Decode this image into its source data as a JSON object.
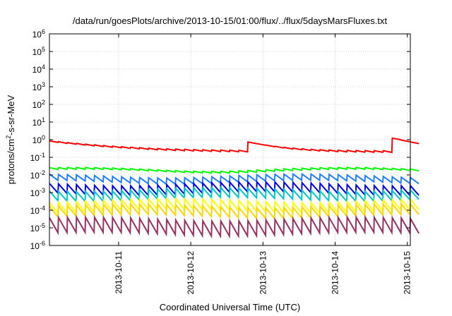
{
  "chart_data": {
    "type": "line",
    "title": "/data/run/goesPlots/archive/2013-10-15/01:00/flux/../flux/5daysMarsFluxes.txt",
    "xlabel": "Coordinated Universal Time (UTC)",
    "ylabel": "protons/cm²-s-sr-MeV",
    "ylabel_parts": {
      "before": "protons/cm",
      "sup": "2",
      "after": "-s-sr-MeV"
    },
    "yscale": "log",
    "ylim_exponents": [
      -6,
      6
    ],
    "y_tick_base": "10",
    "y_tick_exponents": [
      "-6",
      "-5",
      "-4",
      "-3",
      "-2",
      "-1",
      "0",
      "1",
      "2",
      "3",
      "4",
      "5",
      "6"
    ],
    "x_ticks": [
      "2013-10-11",
      "2013-10-12",
      "2013-10-13",
      "2013-10-14",
      "2013-10-15"
    ],
    "x_start": "2013-10-10 01:00",
    "x_end": "2013-10-15 01:00",
    "grid": true,
    "legend": "none",
    "series_style": [
      {
        "color": "#ff0000",
        "base": 0.22,
        "amplitude": 0.15
      },
      {
        "color": "#00ff00",
        "base": 0.019,
        "amplitude": 0.1
      },
      {
        "color": "#1f7fff",
        "base": 0.006,
        "amplitude": 0.35
      },
      {
        "color": "#0000ee",
        "base": 0.0017,
        "amplitude": 0.55
      },
      {
        "color": "#00c8c8",
        "base": 0.0008,
        "amplitude": 0.55
      },
      {
        "color": "#ffff00",
        "base": 0.00018,
        "amplitude": 0.6
      },
      {
        "color": "#ffd700",
        "base": 9e-05,
        "amplitude": 0.6
      },
      {
        "color": "#9a3060",
        "base": 1.2e-05,
        "amplitude": 0.85
      }
    ],
    "peaks_approx": [
      {
        "x": "2013-10-12 17:00",
        "y": 0.8
      },
      {
        "x": "2013-10-14 17:00",
        "y": 1.4
      }
    ],
    "sawtooth_period_hours": 3
  }
}
